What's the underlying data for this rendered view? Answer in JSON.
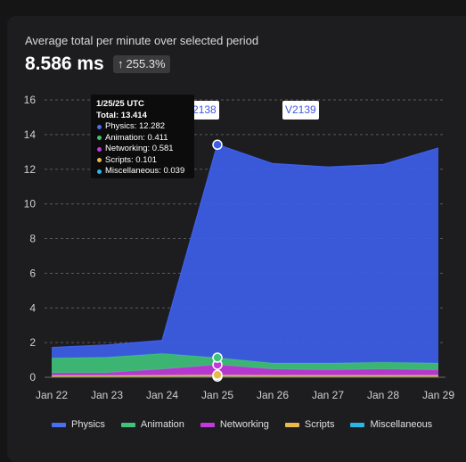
{
  "header": {
    "subtitle": "Average total per minute over selected period",
    "value": "8.586 ms",
    "change_arrow": "↑",
    "change": "255.3%"
  },
  "tooltip": {
    "date": "1/25/25 UTC",
    "total": "Total: 13.414",
    "rows": [
      {
        "label": "Physics: 12.282",
        "color": "#4a6ff0"
      },
      {
        "label": "Animation: 0.411",
        "color": "#3fc27a"
      },
      {
        "label": "Networking: 0.581",
        "color": "#c13ae0"
      },
      {
        "label": "Scripts: 0.101",
        "color": "#e8b94b"
      },
      {
        "label": "Miscellaneous: 0.039",
        "color": "#2cb6e8"
      }
    ]
  },
  "version_tags": [
    {
      "partial": "V",
      "label": "V2138"
    },
    {
      "label": "V2139"
    }
  ],
  "chart_data": {
    "type": "area",
    "stacked": true,
    "x": [
      "Jan 22",
      "Jan 23",
      "Jan 24",
      "Jan 25",
      "Jan 26",
      "Jan 27",
      "Jan 28",
      "Jan 29"
    ],
    "ylim": [
      0,
      16
    ],
    "yticks": [
      0,
      2,
      4,
      6,
      8,
      10,
      12,
      14,
      16
    ],
    "grid": true,
    "legend_position": "bottom",
    "series": [
      {
        "name": "Miscellaneous",
        "color": "#2cb6e8",
        "values": [
          0.03,
          0.03,
          0.03,
          0.039,
          0.03,
          0.03,
          0.03,
          0.03
        ]
      },
      {
        "name": "Scripts",
        "color": "#e8b94b",
        "values": [
          0.08,
          0.08,
          0.09,
          0.101,
          0.09,
          0.09,
          0.09,
          0.09
        ]
      },
      {
        "name": "Networking",
        "color": "#c13ae0",
        "values": [
          0.15,
          0.15,
          0.35,
          0.581,
          0.35,
          0.3,
          0.35,
          0.3
        ]
      },
      {
        "name": "Animation",
        "color": "#3fc27a",
        "values": [
          0.85,
          0.9,
          0.9,
          0.411,
          0.35,
          0.4,
          0.4,
          0.4
        ]
      },
      {
        "name": "Physics",
        "color": "#3d5ee8",
        "values": [
          0.6,
          0.7,
          0.75,
          12.282,
          11.5,
          11.3,
          11.4,
          12.4
        ]
      }
    ]
  },
  "legend": [
    {
      "name": "Physics",
      "color": "#4a6ff0"
    },
    {
      "name": "Animation",
      "color": "#3fc27a"
    },
    {
      "name": "Networking",
      "color": "#c13ae0"
    },
    {
      "name": "Scripts",
      "color": "#e8b94b"
    },
    {
      "name": "Miscellaneous",
      "color": "#2cb6e8"
    }
  ]
}
